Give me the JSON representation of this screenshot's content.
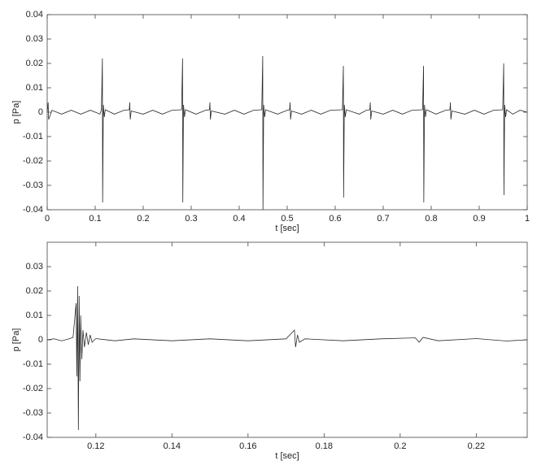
{
  "chart_data": [
    {
      "type": "line",
      "xlabel": "t [sec]",
      "ylabel": "p [Pa]",
      "color": "#2b2b2b",
      "xlim": [
        0,
        1
      ],
      "ylim": [
        -0.04,
        0.04
      ],
      "xticks": [
        0,
        0.1,
        0.2,
        0.3,
        0.4,
        0.5,
        0.6,
        0.7,
        0.8,
        0.9,
        1
      ],
      "yticks": [
        -0.04,
        -0.03,
        -0.02,
        -0.01,
        0,
        0.01,
        0.02,
        0.03,
        0.04
      ],
      "x": [
        0,
        0.002,
        0.003,
        0.01,
        0.03,
        0.05,
        0.07,
        0.09,
        0.11,
        0.113,
        0.115,
        0.1155,
        0.117,
        0.119,
        0.121,
        0.14,
        0.16,
        0.171,
        0.172,
        0.173,
        0.175,
        0.2,
        0.22,
        0.24,
        0.26,
        0.28,
        0.282,
        0.2825,
        0.284,
        0.286,
        0.288,
        0.31,
        0.33,
        0.338,
        0.339,
        0.34,
        0.342,
        0.37,
        0.39,
        0.41,
        0.43,
        0.447,
        0.449,
        0.4495,
        0.451,
        0.453,
        0.455,
        0.48,
        0.5,
        0.505,
        0.506,
        0.507,
        0.509,
        0.53,
        0.55,
        0.57,
        0.59,
        0.615,
        0.617,
        0.6175,
        0.619,
        0.621,
        0.623,
        0.65,
        0.665,
        0.672,
        0.673,
        0.674,
        0.676,
        0.7,
        0.72,
        0.74,
        0.76,
        0.782,
        0.784,
        0.7845,
        0.786,
        0.788,
        0.79,
        0.81,
        0.83,
        0.839,
        0.84,
        0.841,
        0.843,
        0.87,
        0.89,
        0.91,
        0.93,
        0.949,
        0.951,
        0.9515,
        0.953,
        0.955,
        0.957,
        0.97,
        0.985,
        1
      ],
      "values": [
        0,
        0.004,
        -0.003,
        0.0008,
        -0.0008,
        0.0008,
        -0.0008,
        0.0008,
        -0.0008,
        0.001,
        0.022,
        -0.037,
        0.003,
        -0.002,
        0.001,
        -0.0008,
        0.0008,
        0.001,
        0.004,
        -0.003,
        0.0005,
        -0.0008,
        0.0008,
        -0.0008,
        0.0008,
        0.001,
        0.022,
        -0.037,
        0.003,
        -0.002,
        0.001,
        -0.0008,
        0.0008,
        0.001,
        0.004,
        -0.003,
        0.0005,
        -0.0008,
        0.0008,
        -0.0008,
        0.0008,
        0.001,
        0.023,
        -0.04,
        0.003,
        -0.002,
        0.001,
        -0.0008,
        0.0008,
        0.001,
        0.004,
        -0.003,
        0.0005,
        -0.0008,
        0.0008,
        -0.0008,
        0.0008,
        0.001,
        0.019,
        -0.035,
        0.003,
        -0.002,
        0.001,
        -0.0008,
        0.0008,
        0.001,
        0.004,
        -0.003,
        0.0005,
        -0.0008,
        0.0008,
        -0.0008,
        0.0008,
        0.001,
        0.019,
        -0.037,
        0.003,
        -0.002,
        0.001,
        -0.0008,
        0.0008,
        0.001,
        0.004,
        -0.003,
        0.0005,
        -0.0008,
        0.0008,
        -0.0008,
        0.0008,
        0.001,
        0.02,
        -0.034,
        0.003,
        -0.002,
        0.001,
        -0.0008,
        0.0008,
        0
      ]
    },
    {
      "type": "line",
      "xlabel": "t [sec]",
      "ylabel": "p [Pa]",
      "color": "#2b2b2b",
      "xlim": [
        0.1072,
        0.2334
      ],
      "ylim": [
        -0.04,
        0.04
      ],
      "xticks": [
        0.12,
        0.14,
        0.16,
        0.18,
        0.2,
        0.22
      ],
      "yticks": [
        -0.04,
        -0.03,
        -0.02,
        -0.01,
        0,
        0.01,
        0.02,
        0.03
      ],
      "x": [
        0.1072,
        0.109,
        0.111,
        0.113,
        0.114,
        0.1148,
        0.115,
        0.1152,
        0.1154,
        0.1156,
        0.1158,
        0.116,
        0.1163,
        0.1166,
        0.117,
        0.1175,
        0.118,
        0.1185,
        0.119,
        0.12,
        0.125,
        0.13,
        0.14,
        0.15,
        0.16,
        0.17,
        0.1722,
        0.1725,
        0.173,
        0.1735,
        0.175,
        0.185,
        0.195,
        0.204,
        0.205,
        0.206,
        0.21,
        0.22,
        0.228,
        0.2334
      ],
      "values": [
        0,
        0.0004,
        -0.0004,
        0.0004,
        0.001,
        0.015,
        -0.015,
        0.022,
        -0.037,
        0.018,
        -0.017,
        0.01,
        -0.008,
        0.004,
        -0.003,
        0.003,
        -0.002,
        0.002,
        -0.001,
        0.0005,
        -0.0004,
        0.0004,
        -0.0004,
        0.0004,
        -0.0004,
        0.0004,
        0.004,
        -0.003,
        0.002,
        -0.001,
        0.0004,
        -0.0004,
        0.0004,
        0.0008,
        -0.001,
        0.001,
        -0.0004,
        0.0005,
        -0.0005,
        0
      ]
    }
  ]
}
